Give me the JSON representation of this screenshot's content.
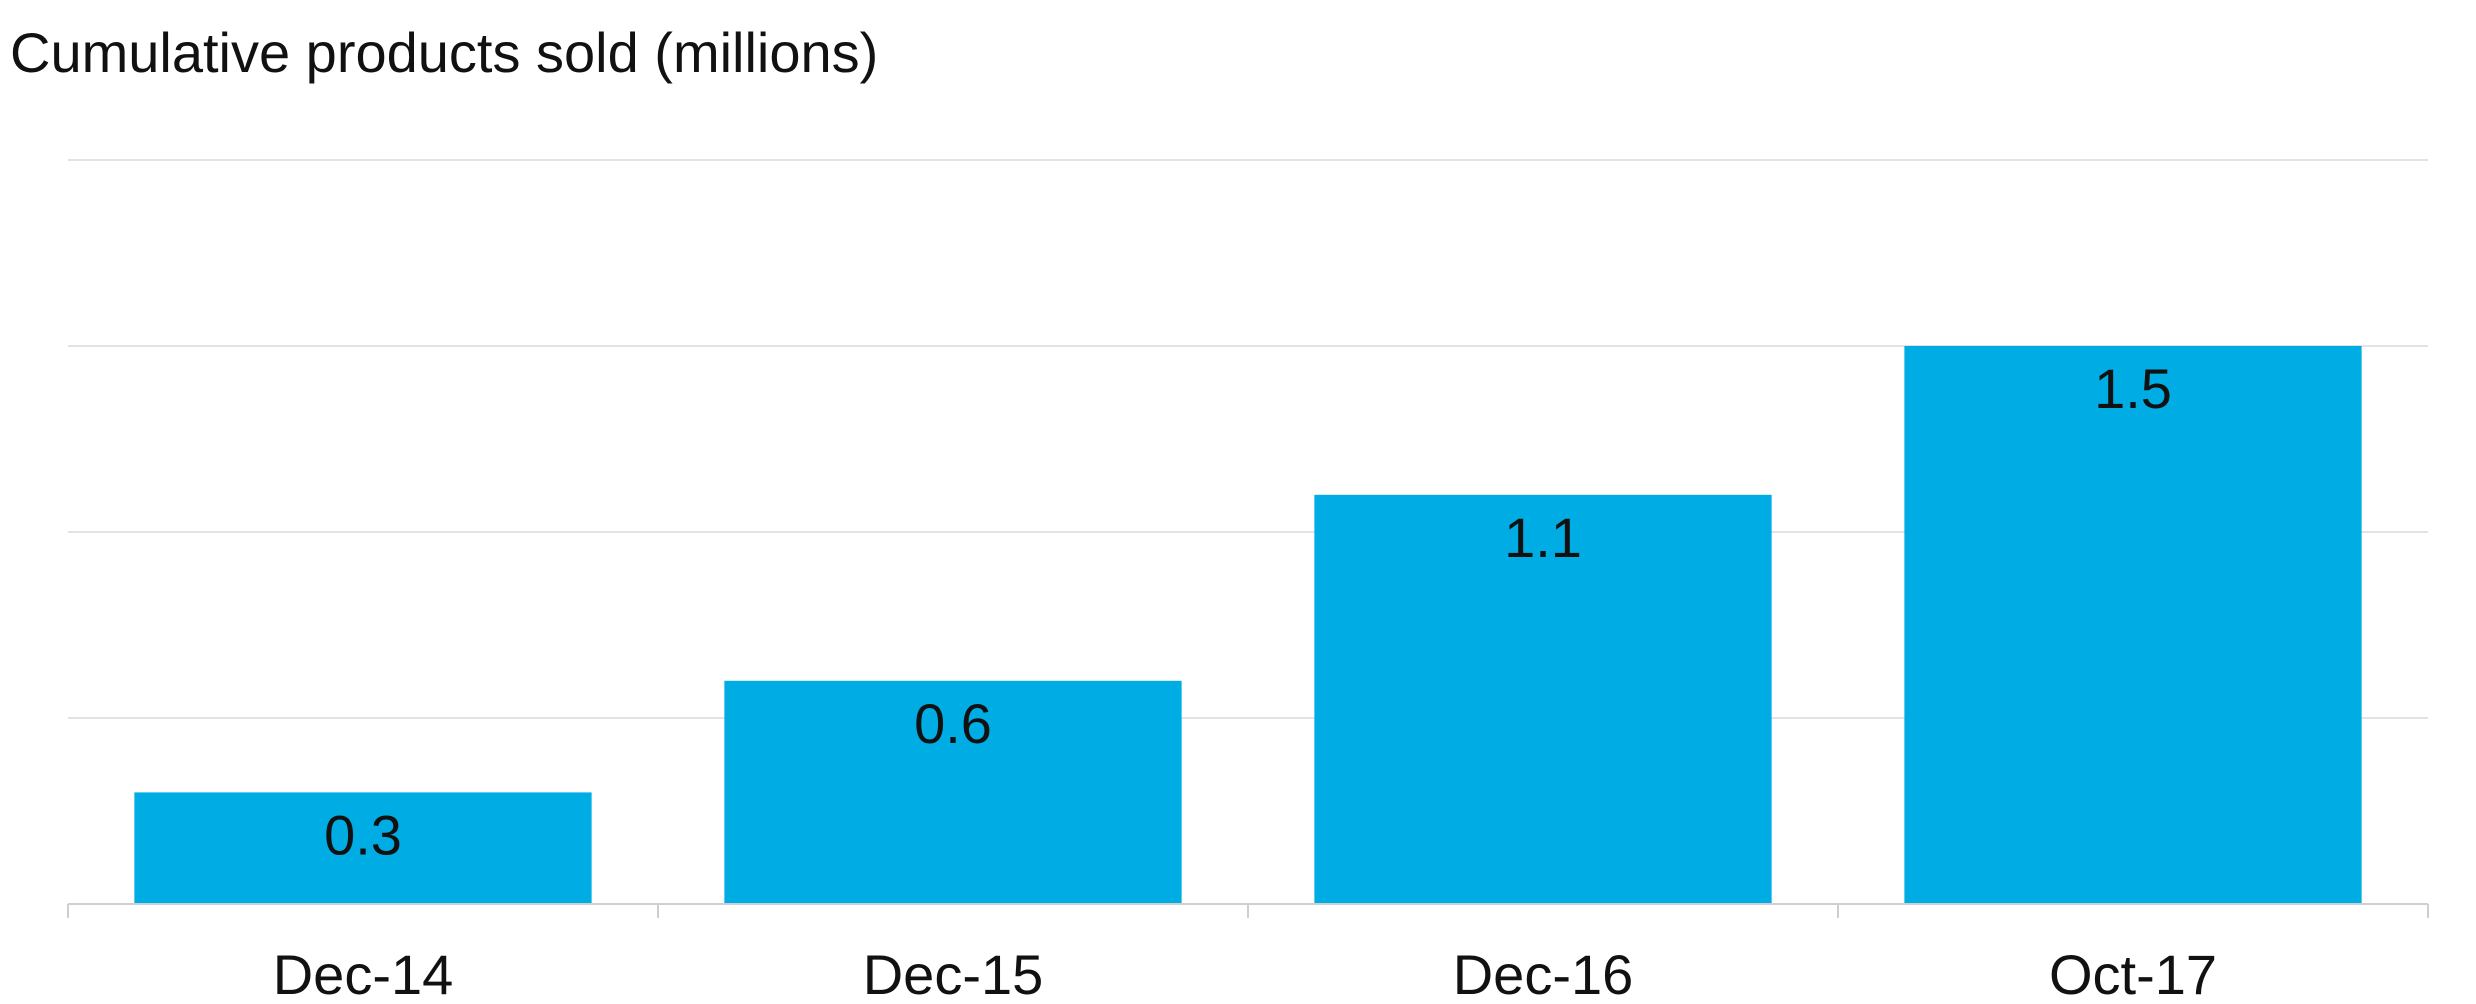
{
  "chart_data": {
    "type": "bar",
    "title": "Cumulative products sold (millions)",
    "xlabel": "",
    "ylabel": "",
    "categories": [
      "Dec-14",
      "Dec-15",
      "Dec-16",
      "Oct-17"
    ],
    "values": [
      0.3,
      0.6,
      1.1,
      1.5
    ],
    "data_labels": [
      "0.3",
      "0.6",
      "1.1",
      "1.5"
    ],
    "ylim": [
      0,
      2.0
    ],
    "grid": true,
    "legend": "none",
    "bar_color": "#00ACE4"
  }
}
